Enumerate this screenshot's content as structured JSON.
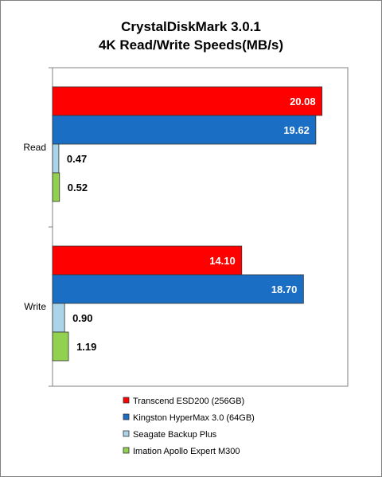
{
  "chart_data": {
    "type": "bar",
    "orientation": "horizontal",
    "title_line1": "CrystalDiskMark 3.0.1",
    "title_line2": "4K Read/Write Speeds(MB/s)",
    "categories": [
      "Read",
      "Write"
    ],
    "series": [
      {
        "name": "Transcend ESD200 (256GB)",
        "color": "#ff0000",
        "values": [
          20.08,
          14.1
        ],
        "labels": [
          "20.08",
          "14.10"
        ]
      },
      {
        "name": "Kingston HyperMax 3.0 (64GB)",
        "color": "#1a6fc4",
        "values": [
          19.62,
          18.7
        ],
        "labels": [
          "19.62",
          "18.70"
        ]
      },
      {
        "name": "Seagate Backup Plus",
        "color": "#a9d4ea",
        "values": [
          0.47,
          0.9
        ],
        "labels": [
          "0.47",
          "0.90"
        ]
      },
      {
        "name": "Imation Apollo Expert M300",
        "color": "#92d050",
        "values": [
          0.52,
          1.19
        ],
        "labels": [
          "0.52",
          "1.19"
        ]
      }
    ],
    "xlim": [
      0,
      22
    ],
    "grid": false,
    "legend_position": "bottom"
  }
}
